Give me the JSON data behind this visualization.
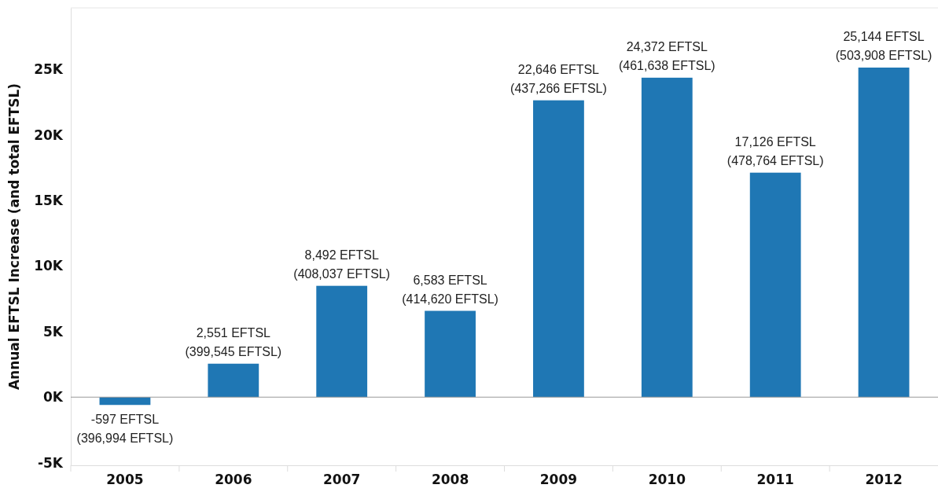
{
  "chart_data": {
    "type": "bar",
    "ylabel": "Annual EFTSL Increase (and total EFTSL)",
    "categories": [
      "2005",
      "2006",
      "2007",
      "2008",
      "2009",
      "2010",
      "2011",
      "2012"
    ],
    "values": [
      -597,
      2551,
      8492,
      6583,
      22646,
      24372,
      17126,
      25144
    ],
    "value_labels": [
      "-597 EFTSL\n(396,994 EFTSL)",
      "2,551 EFTSL\n(399,545 EFTSL)",
      "8,492 EFTSL\n(408,037 EFTSL)",
      "6,583 EFTSL\n(414,620 EFTSL)",
      "22,646 EFTSL\n(437,266 EFTSL)",
      "24,372 EFTSL\n(461,638 EFTSL)",
      "17,126 EFTSL\n(478,764 EFTSL)",
      "25,144 EFTSL\n(503,908 EFTSL)"
    ],
    "color": "#1f77b4",
    "ylim": [
      -5200,
      29700
    ],
    "yticks": [
      {
        "value": -5000,
        "label": "-5K"
      },
      {
        "value": 0,
        "label": "0K"
      },
      {
        "value": 5000,
        "label": "5K"
      },
      {
        "value": 10000,
        "label": "10K"
      },
      {
        "value": 15000,
        "label": "15K"
      },
      {
        "value": 20000,
        "label": "20K"
      },
      {
        "value": 25000,
        "label": "25K"
      }
    ],
    "ref_lines": [
      {
        "axis": "y",
        "value": 0,
        "color": "#999999"
      }
    ],
    "grid": false
  }
}
